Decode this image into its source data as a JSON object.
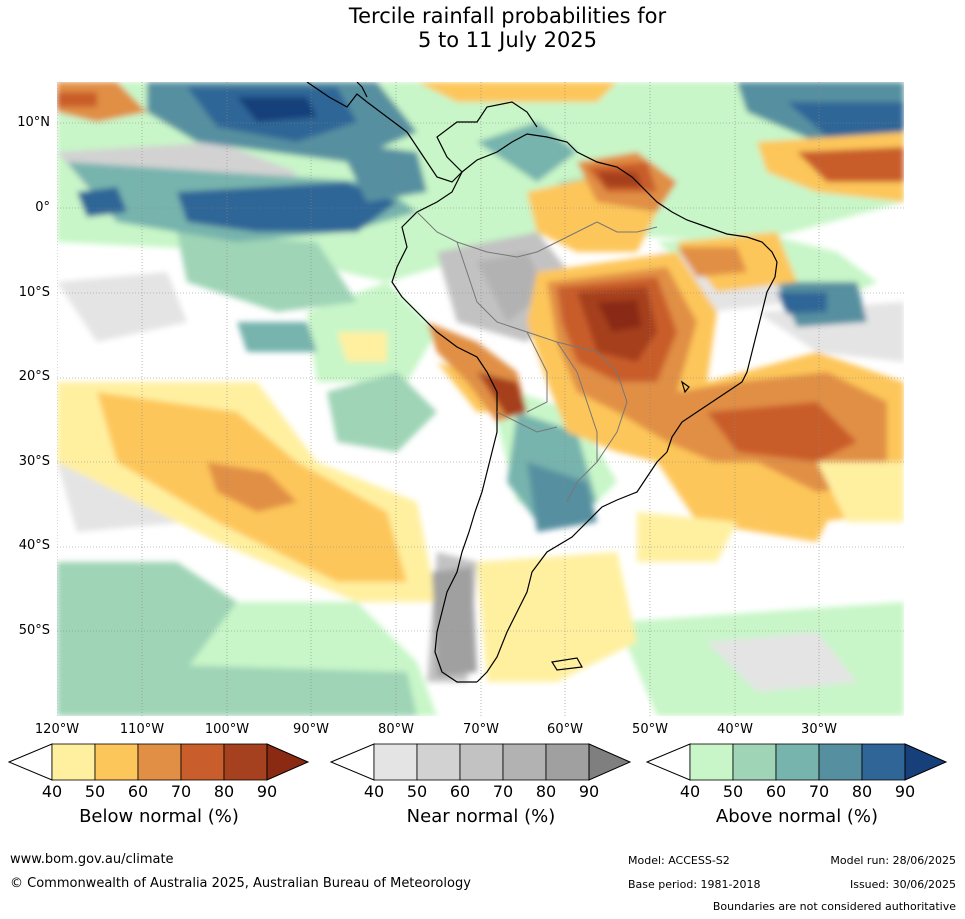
{
  "title_line1": "Tercile rainfall probabilities for",
  "title_line2": "5 to 11 July 2025",
  "map": {
    "lat_labels": [
      "10°N",
      "0°",
      "10°S",
      "20°S",
      "30°S",
      "40°S",
      "50°S"
    ],
    "lon_labels": [
      "120°W",
      "110°W",
      "100°W",
      "90°W",
      "80°W",
      "70°W",
      "60°W",
      "50°W",
      "40°W",
      "30°W"
    ]
  },
  "colorbars": [
    {
      "title": "Below normal (%)",
      "ticks": [
        "40",
        "50",
        "60",
        "70",
        "80",
        "90"
      ],
      "colors": [
        "#fff0a0",
        "#fdc65a",
        "#e18f45",
        "#c95d2c",
        "#a6411f",
        "#8a2a12"
      ]
    },
    {
      "title": "Near normal (%)",
      "ticks": [
        "40",
        "50",
        "60",
        "70",
        "80",
        "90"
      ],
      "colors": [
        "#e4e4e4",
        "#d2d2d2",
        "#c2c2c2",
        "#b2b2b2",
        "#a0a0a0",
        "#7f7f7f"
      ]
    },
    {
      "title": "Above normal (%)",
      "ticks": [
        "40",
        "50",
        "60",
        "70",
        "80",
        "90"
      ],
      "colors": [
        "#c8f6c8",
        "#9fd4b6",
        "#77b4ad",
        "#5690a0",
        "#2f6697",
        "#173f7a"
      ]
    }
  ],
  "footer": {
    "website": "www.bom.gov.au/climate",
    "copyright": "© Commonwealth of Australia 2025, Australian Bureau of Meteorology",
    "model": "Model: ACCESS-S2",
    "model_run": "Model run: 28/06/2025",
    "base_period": "Base period: 1981-2018",
    "issued": "Issued: 30/06/2025",
    "disclaimer": "Boundaries are not considered authoritative"
  }
}
